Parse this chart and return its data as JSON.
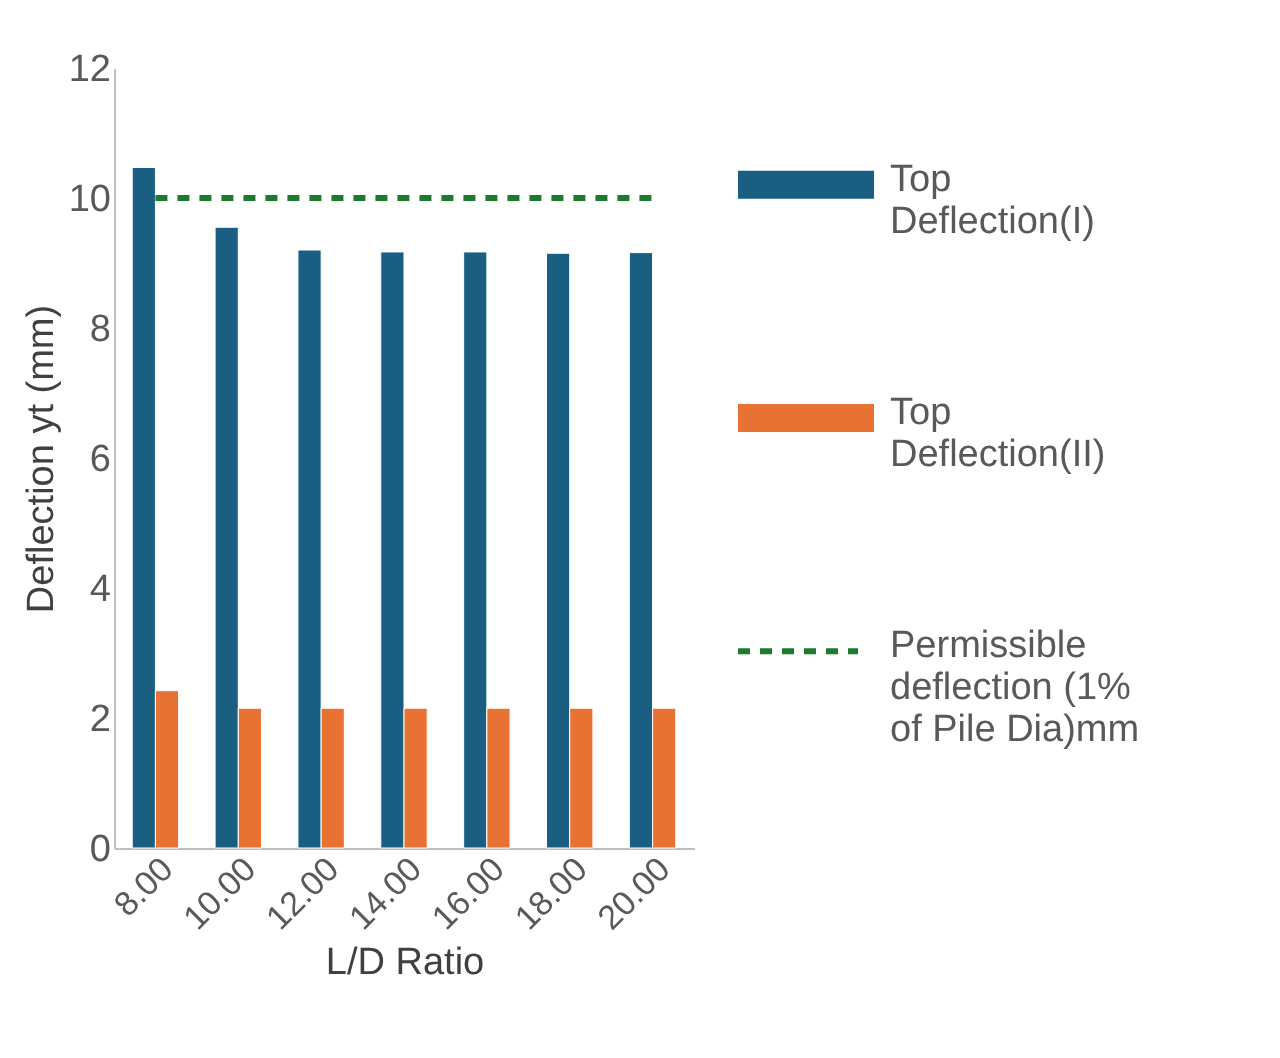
{
  "chart_data": {
    "type": "bar",
    "xlabel": "L/D Ratio",
    "ylabel": "Deflection yt (mm)",
    "categories": [
      "8.00",
      "10.00",
      "12.00",
      "14.00",
      "16.00",
      "18.00",
      "20.00"
    ],
    "series": [
      {
        "name": "Top Deflection(I)",
        "color": "#1a5e82",
        "values": [
          10.47,
          9.55,
          9.2,
          9.17,
          9.17,
          9.15,
          9.16
        ]
      },
      {
        "name": "Top Deflection(II)",
        "color": "#e87234",
        "values": [
          2.42,
          2.15,
          2.15,
          2.15,
          2.15,
          2.15,
          2.15
        ]
      },
      {
        "name": "Permissible deflection (1% of Pile Dia)mm",
        "color": "#1e7b2e",
        "type": "line",
        "line_style": "dashed",
        "values": [
          10,
          10,
          10,
          10,
          10,
          10,
          10
        ]
      }
    ],
    "ylim": [
      0,
      12
    ],
    "yticks": [
      0,
      2,
      4,
      6,
      8,
      10,
      12
    ],
    "grid": false,
    "legend": "right"
  }
}
